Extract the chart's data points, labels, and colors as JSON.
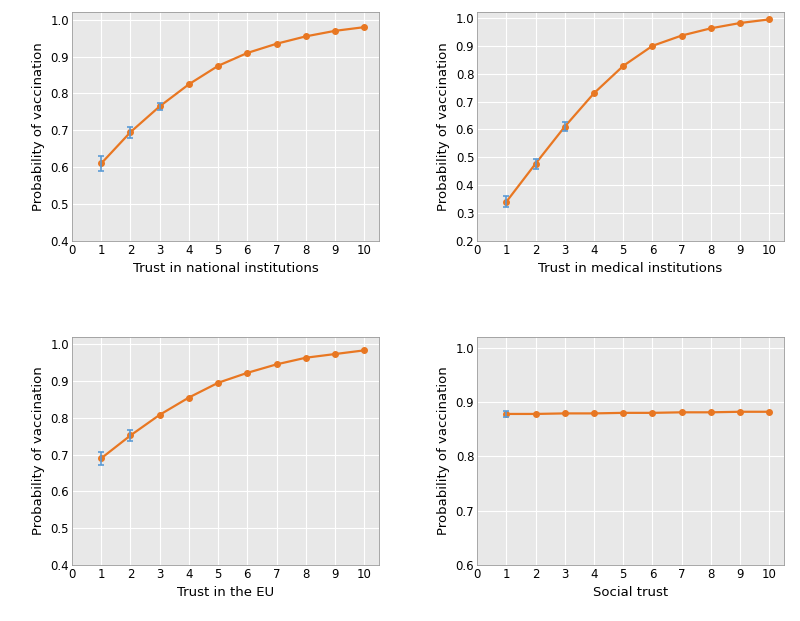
{
  "subplots": [
    {
      "xlabel": "Trust in national institutions",
      "ylabel": "Probability of vaccination",
      "x": [
        1,
        2,
        3,
        4,
        5,
        6,
        7,
        8,
        9,
        10
      ],
      "y": [
        0.61,
        0.695,
        0.765,
        0.825,
        0.875,
        0.91,
        0.935,
        0.955,
        0.97,
        0.98
      ],
      "yerr_low": [
        0.02,
        0.015,
        0.01,
        0,
        0,
        0,
        0,
        0,
        0,
        0
      ],
      "yerr_high": [
        0.02,
        0.015,
        0.01,
        0,
        0,
        0,
        0,
        0,
        0,
        0
      ],
      "err_points": [
        1,
        2,
        3
      ],
      "ylim": [
        0.4,
        1.02
      ],
      "yticks": [
        0.4,
        0.5,
        0.6,
        0.7,
        0.8,
        0.9,
        1.0
      ]
    },
    {
      "xlabel": "Trust in medical institutions",
      "ylabel": "Probability of vaccination",
      "x": [
        1,
        2,
        3,
        4,
        5,
        6,
        7,
        8,
        9,
        10
      ],
      "y": [
        0.34,
        0.477,
        0.61,
        0.73,
        0.828,
        0.9,
        0.937,
        0.963,
        0.982,
        0.995
      ],
      "yerr_low": [
        0.02,
        0.018,
        0.015,
        0,
        0,
        0,
        0,
        0,
        0,
        0
      ],
      "yerr_high": [
        0.02,
        0.018,
        0.015,
        0,
        0,
        0,
        0,
        0,
        0,
        0
      ],
      "err_points": [
        1,
        2,
        3
      ],
      "ylim": [
        0.2,
        1.02
      ],
      "yticks": [
        0.2,
        0.3,
        0.4,
        0.5,
        0.6,
        0.7,
        0.8,
        0.9,
        1.0
      ]
    },
    {
      "xlabel": "Trust in the EU",
      "ylabel": "Probability of vaccination",
      "x": [
        1,
        2,
        3,
        4,
        5,
        6,
        7,
        8,
        9,
        10
      ],
      "y": [
        0.69,
        0.752,
        0.808,
        0.855,
        0.895,
        0.922,
        0.945,
        0.963,
        0.973,
        0.983
      ],
      "yerr_low": [
        0.018,
        0.015,
        0,
        0,
        0,
        0,
        0,
        0,
        0,
        0
      ],
      "yerr_high": [
        0.018,
        0.015,
        0,
        0,
        0,
        0,
        0,
        0,
        0,
        0
      ],
      "err_points": [
        1,
        2
      ],
      "ylim": [
        0.4,
        1.02
      ],
      "yticks": [
        0.4,
        0.5,
        0.6,
        0.7,
        0.8,
        0.9,
        1.0
      ]
    },
    {
      "xlabel": "Social trust",
      "ylabel": "Probability of vaccination",
      "x": [
        1,
        2,
        3,
        4,
        5,
        6,
        7,
        8,
        9,
        10
      ],
      "y": [
        0.878,
        0.878,
        0.879,
        0.879,
        0.88,
        0.88,
        0.881,
        0.881,
        0.882,
        0.882
      ],
      "yerr_low": [
        0.005,
        0,
        0,
        0,
        0,
        0,
        0,
        0,
        0,
        0
      ],
      "yerr_high": [
        0.005,
        0,
        0,
        0,
        0,
        0,
        0,
        0,
        0,
        0
      ],
      "err_points": [
        1
      ],
      "ylim": [
        0.6,
        1.02
      ],
      "yticks": [
        0.6,
        0.7,
        0.8,
        0.9,
        1.0
      ]
    }
  ],
  "line_color": "#E87722",
  "marker_color": "#E87722",
  "err_color": "#5B9BD5",
  "marker_style": "o",
  "marker_size": 4,
  "line_width": 1.6,
  "grid_color": "#CCCCCC",
  "bg_color": "#FFFFFF",
  "face_color": "#FFFFFF",
  "ax_bg_color": "#E8E8E8",
  "tick_fontsize": 8.5,
  "label_fontsize": 9.5
}
